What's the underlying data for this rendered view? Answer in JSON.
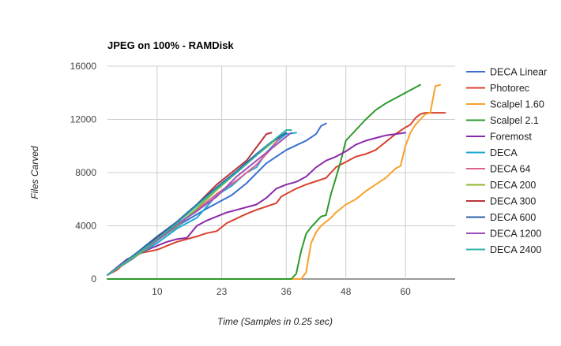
{
  "chart_data": {
    "type": "line",
    "title": "JPEG on 100% - RAMDisk",
    "xlabel": "Time (Samples in 0.25 sec)",
    "ylabel": "Files Carved",
    "xlim": [
      0,
      70
    ],
    "ylim": [
      0,
      16000
    ],
    "x_ticks": [
      10,
      23,
      36,
      48,
      60
    ],
    "y_ticks": [
      0,
      4000,
      8000,
      12000,
      16000
    ],
    "grid": "vertical and horizontal",
    "legend_position": "right",
    "series": [
      {
        "name": "DECA Linear",
        "color": "#3a6fcf",
        "points": [
          [
            0,
            300
          ],
          [
            5,
            1500
          ],
          [
            10,
            2900
          ],
          [
            15,
            4200
          ],
          [
            20,
            5300
          ],
          [
            25,
            6300
          ],
          [
            28,
            7200
          ],
          [
            32,
            8700
          ],
          [
            36,
            9700
          ],
          [
            40,
            10400
          ],
          [
            42,
            10900
          ],
          [
            43,
            11500
          ],
          [
            44,
            11700
          ]
        ]
      },
      {
        "name": "Photorec",
        "color": "#d8412f",
        "points": [
          [
            0,
            300
          ],
          [
            2,
            700
          ],
          [
            4,
            1400
          ],
          [
            6,
            1900
          ],
          [
            8,
            2050
          ],
          [
            10,
            2200
          ],
          [
            12,
            2500
          ],
          [
            14,
            2800
          ],
          [
            16,
            3000
          ],
          [
            18,
            3200
          ],
          [
            20,
            3450
          ],
          [
            22,
            3600
          ],
          [
            24,
            4200
          ],
          [
            26,
            4550
          ],
          [
            28,
            4900
          ],
          [
            30,
            5200
          ],
          [
            32,
            5450
          ],
          [
            34,
            5700
          ],
          [
            35,
            6200
          ],
          [
            36,
            6400
          ],
          [
            38,
            6800
          ],
          [
            40,
            7100
          ],
          [
            42,
            7350
          ],
          [
            44,
            7600
          ],
          [
            45,
            8000
          ],
          [
            46,
            8400
          ],
          [
            48,
            8800
          ],
          [
            50,
            9200
          ],
          [
            52,
            9400
          ],
          [
            54,
            9700
          ],
          [
            56,
            10300
          ],
          [
            58,
            10900
          ],
          [
            60,
            11400
          ],
          [
            61,
            11600
          ],
          [
            62,
            12100
          ],
          [
            63,
            12400
          ],
          [
            64,
            12500
          ],
          [
            68,
            12500
          ]
        ]
      },
      {
        "name": "Scalpel 1.60",
        "color": "#f7a12a",
        "points": [
          [
            37,
            0
          ],
          [
            39,
            0
          ],
          [
            40,
            500
          ],
          [
            41,
            2700
          ],
          [
            42,
            3500
          ],
          [
            43,
            4000
          ],
          [
            45,
            4600
          ],
          [
            46,
            5000
          ],
          [
            48,
            5600
          ],
          [
            50,
            6000
          ],
          [
            52,
            6600
          ],
          [
            54,
            7100
          ],
          [
            56,
            7600
          ],
          [
            58,
            8300
          ],
          [
            59,
            8500
          ],
          [
            60,
            10000
          ],
          [
            61,
            11000
          ],
          [
            62,
            11600
          ],
          [
            63,
            12000
          ],
          [
            64,
            12400
          ],
          [
            65,
            12500
          ],
          [
            66,
            14500
          ],
          [
            67,
            14600
          ]
        ]
      },
      {
        "name": "Scalpel 2.1",
        "color": "#2c9a2c",
        "points": [
          [
            0,
            0
          ],
          [
            37,
            0
          ],
          [
            38,
            400
          ],
          [
            39,
            2100
          ],
          [
            40,
            3400
          ],
          [
            41,
            3900
          ],
          [
            42,
            4300
          ],
          [
            43,
            4700
          ],
          [
            44,
            4800
          ],
          [
            45,
            6400
          ],
          [
            46,
            7600
          ],
          [
            47,
            8900
          ],
          [
            48,
            10400
          ],
          [
            50,
            11200
          ],
          [
            52,
            12000
          ],
          [
            54,
            12700
          ],
          [
            56,
            13200
          ],
          [
            58,
            13600
          ],
          [
            60,
            14000
          ],
          [
            62,
            14400
          ],
          [
            63,
            14600
          ]
        ]
      },
      {
        "name": "Foremost",
        "color": "#8a2aa8",
        "points": [
          [
            0,
            300
          ],
          [
            4,
            1500
          ],
          [
            6,
            1800
          ],
          [
            8,
            2200
          ],
          [
            10,
            2500
          ],
          [
            12,
            2800
          ],
          [
            14,
            3000
          ],
          [
            16,
            3100
          ],
          [
            18,
            4000
          ],
          [
            20,
            4400
          ],
          [
            22,
            4700
          ],
          [
            24,
            5000
          ],
          [
            26,
            5200
          ],
          [
            28,
            5400
          ],
          [
            30,
            5600
          ],
          [
            32,
            6100
          ],
          [
            34,
            6800
          ],
          [
            36,
            7100
          ],
          [
            38,
            7300
          ],
          [
            40,
            7700
          ],
          [
            42,
            8400
          ],
          [
            44,
            8900
          ],
          [
            46,
            9200
          ],
          [
            48,
            9600
          ],
          [
            50,
            10100
          ],
          [
            52,
            10400
          ],
          [
            54,
            10600
          ],
          [
            56,
            10800
          ],
          [
            58,
            10900
          ],
          [
            60,
            11000
          ]
        ]
      },
      {
        "name": "DECA",
        "color": "#1fa9d2",
        "points": [
          [
            0,
            300
          ],
          [
            6,
            1800
          ],
          [
            10,
            2700
          ],
          [
            14,
            3800
          ],
          [
            18,
            4600
          ],
          [
            22,
            6300
          ],
          [
            25,
            7000
          ],
          [
            28,
            8000
          ],
          [
            30,
            8400
          ],
          [
            32,
            9500
          ],
          [
            34,
            10300
          ],
          [
            36,
            10900
          ],
          [
            38,
            11000
          ]
        ]
      },
      {
        "name": "DECA 64",
        "color": "#e0608c",
        "points": [
          [
            0,
            300
          ],
          [
            6,
            1800
          ],
          [
            10,
            2900
          ],
          [
            14,
            4000
          ],
          [
            18,
            5200
          ],
          [
            22,
            6400
          ],
          [
            26,
            7400
          ],
          [
            30,
            8600
          ],
          [
            33,
            9800
          ],
          [
            35,
            10800
          ]
        ]
      },
      {
        "name": "DECA 200",
        "color": "#8fb62a",
        "points": [
          [
            0,
            300
          ],
          [
            6,
            1800
          ],
          [
            10,
            2900
          ],
          [
            14,
            4000
          ],
          [
            18,
            5300
          ],
          [
            22,
            6700
          ],
          [
            26,
            8000
          ],
          [
            30,
            9300
          ],
          [
            33,
            10200
          ],
          [
            35,
            10800
          ]
        ]
      },
      {
        "name": "DECA 300",
        "color": "#b8343c",
        "points": [
          [
            0,
            300
          ],
          [
            6,
            1900
          ],
          [
            10,
            3100
          ],
          [
            14,
            4300
          ],
          [
            18,
            5600
          ],
          [
            22,
            7100
          ],
          [
            26,
            8300
          ],
          [
            28,
            8900
          ],
          [
            30,
            9900
          ],
          [
            32,
            10900
          ],
          [
            33,
            11000
          ]
        ]
      },
      {
        "name": "DECA 600",
        "color": "#2d5fa6",
        "points": [
          [
            0,
            300
          ],
          [
            6,
            2000
          ],
          [
            10,
            3200
          ],
          [
            14,
            4300
          ],
          [
            18,
            5600
          ],
          [
            22,
            6900
          ],
          [
            26,
            8100
          ],
          [
            30,
            9400
          ],
          [
            33,
            10300
          ],
          [
            36,
            11000
          ]
        ]
      },
      {
        "name": "DECA 1200",
        "color": "#9e4fb8",
        "points": [
          [
            0,
            300
          ],
          [
            6,
            1900
          ],
          [
            10,
            2900
          ],
          [
            14,
            4100
          ],
          [
            18,
            5100
          ],
          [
            22,
            6200
          ],
          [
            26,
            7700
          ],
          [
            30,
            8900
          ],
          [
            34,
            10100
          ],
          [
            37,
            11000
          ]
        ]
      },
      {
        "name": "DECA 2400",
        "color": "#2fb3a8",
        "points": [
          [
            0,
            300
          ],
          [
            6,
            1900
          ],
          [
            10,
            3000
          ],
          [
            14,
            4200
          ],
          [
            18,
            5500
          ],
          [
            22,
            6800
          ],
          [
            26,
            8000
          ],
          [
            30,
            9300
          ],
          [
            34,
            10600
          ],
          [
            36,
            11200
          ],
          [
            37,
            11200
          ]
        ]
      }
    ]
  }
}
